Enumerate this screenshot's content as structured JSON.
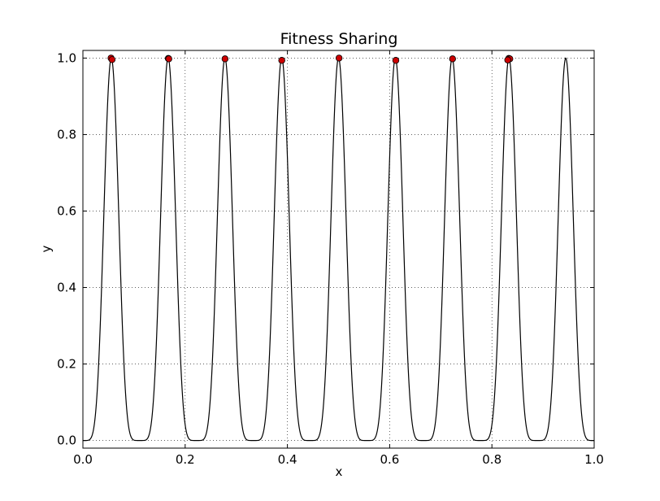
{
  "chart_data": {
    "type": "line",
    "title": "Fitness Sharing",
    "xlabel": "x",
    "ylabel": "y",
    "xlim": [
      0.0,
      1.0
    ],
    "ylim": [
      -0.02,
      1.02
    ],
    "xticks": [
      {
        "value": 0.0,
        "label": "0.0"
      },
      {
        "value": 0.2,
        "label": "0.2"
      },
      {
        "value": 0.4,
        "label": "0.4"
      },
      {
        "value": 0.6,
        "label": "0.6"
      },
      {
        "value": 0.8,
        "label": "0.8"
      },
      {
        "value": 1.0,
        "label": "1.0"
      }
    ],
    "yticks": [
      {
        "value": 0.0,
        "label": "0.0"
      },
      {
        "value": 0.2,
        "label": "0.2"
      },
      {
        "value": 0.4,
        "label": "0.4"
      },
      {
        "value": 0.6,
        "label": "0.6"
      },
      {
        "value": 0.8,
        "label": "0.8"
      },
      {
        "value": 1.0,
        "label": "1.0"
      }
    ],
    "grid": true,
    "legend": "none",
    "series": [
      {
        "type": "line",
        "function": "sin(9*pi*x)^6",
        "color": "#000000",
        "x_range": [
          0.0,
          1.0
        ]
      },
      {
        "type": "scatter",
        "color": "#cc0000",
        "edge_color": "#000000",
        "points": [
          {
            "x": 0.055,
            "y": 1.0
          },
          {
            "x": 0.057,
            "y": 0.996
          },
          {
            "x": 0.167,
            "y": 0.999
          },
          {
            "x": 0.168,
            "y": 0.998
          },
          {
            "x": 0.278,
            "y": 0.998
          },
          {
            "x": 0.389,
            "y": 0.994
          },
          {
            "x": 0.501,
            "y": 1.0
          },
          {
            "x": 0.612,
            "y": 0.994
          },
          {
            "x": 0.723,
            "y": 0.998
          },
          {
            "x": 0.833,
            "y": 0.999
          },
          {
            "x": 0.835,
            "y": 0.998
          },
          {
            "x": 0.831,
            "y": 0.995
          }
        ]
      }
    ]
  }
}
